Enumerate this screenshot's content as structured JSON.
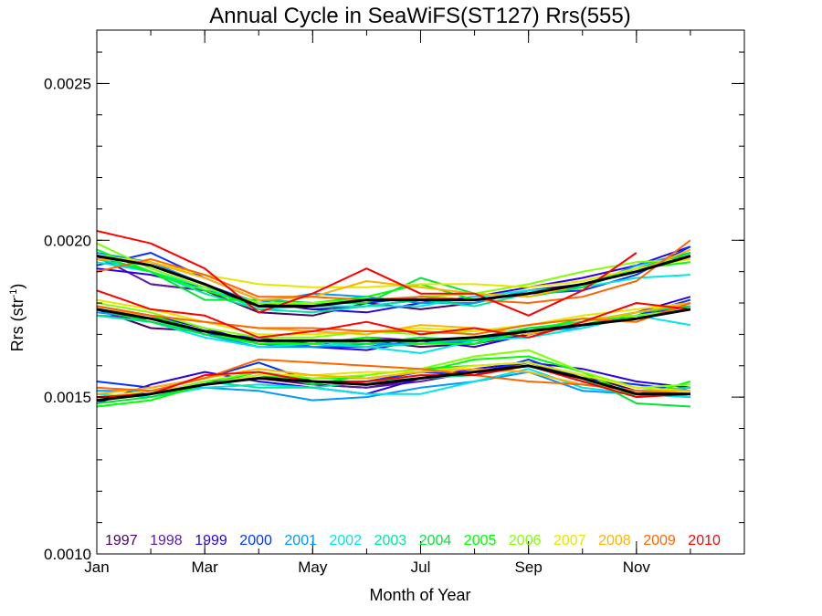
{
  "chart_data": {
    "type": "line",
    "title": "Annual Cycle in SeaWiFS(ST127) Rrs(555)",
    "xlabel": "Month of Year",
    "ylabel_main": "Rrs (str",
    "ylabel_sup": "-1",
    "ylabel_close": ")",
    "xlim": [
      1,
      13
    ],
    "ylim": [
      0.001,
      0.00267
    ],
    "x_ticks": [
      {
        "x": 1,
        "label": "Jan"
      },
      {
        "x": 3,
        "label": "Mar"
      },
      {
        "x": 5,
        "label": "May"
      },
      {
        "x": 7,
        "label": "Jul"
      },
      {
        "x": 9,
        "label": "Sep"
      },
      {
        "x": 11,
        "label": "Nov"
      }
    ],
    "y_ticks": [
      {
        "y": 0.001,
        "label": "0.0010"
      },
      {
        "y": 0.0015,
        "label": "0.0015"
      },
      {
        "y": 0.002,
        "label": "0.0020"
      },
      {
        "y": 0.0025,
        "label": "0.0025"
      }
    ],
    "y_minor_step": 0.0001,
    "months": [
      1,
      2,
      3,
      4,
      5,
      6,
      7,
      8,
      9,
      10,
      11,
      12
    ],
    "mean_series": [
      {
        "name": "upper",
        "values": [
          0.00195,
          0.00192,
          0.00186,
          0.00179,
          0.00179,
          0.00181,
          0.00181,
          0.00181,
          0.00183,
          0.00186,
          0.0019,
          0.00195
        ]
      },
      {
        "name": "middle",
        "values": [
          0.00178,
          0.00175,
          0.00171,
          0.00168,
          0.00168,
          0.00168,
          0.00168,
          0.00169,
          0.00171,
          0.00173,
          0.00175,
          0.00178
        ]
      },
      {
        "name": "lower",
        "values": [
          0.00149,
          0.00151,
          0.00154,
          0.00156,
          0.00155,
          0.00154,
          0.00156,
          0.00158,
          0.0016,
          0.00156,
          0.00151,
          0.00151
        ]
      }
    ],
    "year_series": [
      {
        "name": "1997",
        "color": "#4b0066",
        "upper": [
          null,
          0.00186,
          0.00184,
          0.00177,
          0.00176,
          0.0018,
          0.00178,
          0.0018,
          0.00184,
          0.00186,
          0.0019,
          0.00195
        ],
        "middle": [
          0.00178,
          0.00172,
          0.00171,
          0.00168,
          0.00167,
          0.00168,
          0.00166,
          0.00167,
          0.0017,
          0.00173,
          0.00175,
          0.00178
        ],
        "lower": [
          0.0015,
          0.00151,
          0.00155,
          0.00156,
          0.00154,
          0.00153,
          0.00156,
          0.00158,
          0.0016,
          0.00157,
          0.00152,
          0.00151
        ]
      },
      {
        "name": "1998",
        "color": "#5a1aa6",
        "upper": [
          0.00195,
          0.00186,
          0.00184,
          0.0018,
          0.00178,
          0.00179,
          0.00181,
          0.00181,
          0.00183,
          0.00186,
          0.00191,
          0.00196
        ],
        "middle": [
          0.00176,
          0.00175,
          0.00171,
          0.00168,
          0.00167,
          0.00169,
          0.00168,
          0.00169,
          0.00171,
          0.00173,
          0.00176,
          0.00179
        ],
        "lower": [
          0.00149,
          0.00152,
          0.00154,
          0.00157,
          0.00154,
          0.00153,
          0.00155,
          0.00158,
          0.00161,
          0.00156,
          0.00151,
          0.0015
        ]
      },
      {
        "name": "1999",
        "color": "#2a00e6",
        "upper": [
          0.00191,
          0.00189,
          0.00185,
          0.0018,
          0.00178,
          0.00177,
          0.0018,
          0.00182,
          0.00185,
          0.00188,
          0.00192,
          0.00198
        ],
        "middle": [
          0.00179,
          0.00176,
          0.00172,
          0.00167,
          0.00166,
          0.00165,
          0.00168,
          0.00166,
          0.0017,
          0.00174,
          0.00177,
          0.00182
        ],
        "lower": [
          0.00148,
          0.00154,
          0.00158,
          0.00155,
          0.00153,
          0.00151,
          0.00156,
          0.00159,
          0.00161,
          0.00159,
          0.00155,
          0.00153
        ]
      },
      {
        "name": "2000",
        "color": "#0033ff",
        "upper": [
          0.00192,
          0.00196,
          0.00188,
          0.00181,
          0.0018,
          0.0018,
          0.00182,
          0.00181,
          0.00183,
          0.00184,
          0.00189,
          0.00198
        ],
        "middle": [
          0.00179,
          0.00176,
          0.0017,
          0.00169,
          0.00166,
          0.00166,
          0.00168,
          0.00167,
          0.00172,
          0.00173,
          0.00176,
          0.00181
        ],
        "lower": [
          0.00155,
          0.00153,
          0.00156,
          0.00161,
          0.00155,
          0.00155,
          0.00158,
          0.00157,
          0.00162,
          0.00156,
          0.00154,
          0.00152
        ]
      },
      {
        "name": "2001",
        "color": "#0099ff",
        "upper": [
          0.00196,
          0.00193,
          0.00186,
          0.0018,
          0.00183,
          0.00182,
          0.0018,
          0.0018,
          0.00184,
          0.00185,
          0.00192,
          0.00196
        ],
        "middle": [
          0.00177,
          0.00175,
          0.0017,
          0.00166,
          0.00166,
          0.00167,
          0.00167,
          0.00168,
          0.00171,
          0.00172,
          0.00176,
          0.00178
        ],
        "lower": [
          0.00152,
          0.00152,
          0.00153,
          0.00152,
          0.00149,
          0.0015,
          0.00153,
          0.00155,
          0.00158,
          0.00152,
          0.00151,
          0.00153
        ]
      },
      {
        "name": "2002",
        "color": "#00e6e6",
        "upper": [
          0.00193,
          0.0019,
          0.00185,
          0.00178,
          0.00179,
          0.00179,
          0.00179,
          0.00182,
          0.00184,
          0.00185,
          0.00188,
          0.00189
        ],
        "middle": [
          0.00176,
          0.00174,
          0.00169,
          0.00166,
          0.00167,
          0.00166,
          0.00164,
          0.00168,
          0.00169,
          0.00172,
          0.00176,
          0.00173
        ],
        "lower": [
          0.00151,
          0.0015,
          0.00153,
          0.00154,
          0.00153,
          0.00151,
          0.00151,
          0.00155,
          0.00159,
          0.00153,
          0.00151,
          0.0015
        ]
      },
      {
        "name": "2003",
        "color": "#00e6a0",
        "upper": [
          0.00194,
          0.0019,
          0.00183,
          0.00178,
          0.00177,
          0.00179,
          0.00181,
          0.00179,
          0.00183,
          0.00186,
          0.0019,
          0.00196
        ],
        "middle": [
          0.00176,
          0.00174,
          0.00171,
          0.00167,
          0.00168,
          0.00166,
          0.00167,
          0.00169,
          0.00172,
          0.00174,
          0.00177,
          0.00179
        ],
        "lower": [
          0.00149,
          0.00151,
          0.00155,
          0.00153,
          0.00153,
          0.00155,
          0.00156,
          0.00157,
          0.0016,
          0.00155,
          0.00152,
          0.00153
        ]
      },
      {
        "name": "2004",
        "color": "#00e633",
        "upper": [
          0.00195,
          0.0019,
          0.00181,
          0.00181,
          0.0018,
          0.0018,
          0.00188,
          0.00183,
          0.00182,
          0.00185,
          0.00191,
          0.00196
        ],
        "middle": [
          0.00178,
          0.00174,
          0.0017,
          0.00167,
          0.00168,
          0.00167,
          0.00169,
          0.00168,
          0.00172,
          0.00173,
          0.00177,
          0.00179
        ],
        "lower": [
          0.00148,
          0.0015,
          0.00154,
          0.00158,
          0.00154,
          0.00157,
          0.00159,
          0.0016,
          0.00161,
          0.00157,
          0.00148,
          0.00147
        ]
      },
      {
        "name": "2005",
        "color": "#00ff00",
        "upper": [
          0.00197,
          0.0019,
          0.00184,
          0.00179,
          0.0018,
          0.00182,
          0.00186,
          0.00181,
          0.00183,
          0.00186,
          0.00191,
          0.00193
        ],
        "middle": [
          0.00179,
          0.00176,
          0.00171,
          0.00167,
          0.00167,
          0.00169,
          0.00167,
          0.00167,
          0.00171,
          0.00175,
          0.00175,
          0.00178
        ],
        "lower": [
          0.00147,
          0.00149,
          0.00154,
          0.00157,
          0.00156,
          0.00156,
          0.00158,
          0.00162,
          0.00163,
          0.00158,
          0.0015,
          0.00155
        ]
      },
      {
        "name": "2006",
        "color": "#80ff00",
        "upper": [
          0.00199,
          0.00191,
          0.00185,
          0.0018,
          0.0018,
          0.00181,
          0.00182,
          0.00183,
          0.00186,
          0.0019,
          0.00193,
          0.00194
        ],
        "middle": [
          0.0018,
          0.00177,
          0.00172,
          0.00169,
          0.00169,
          0.00171,
          0.0017,
          0.00171,
          0.00173,
          0.00175,
          0.00176,
          0.00178
        ],
        "lower": [
          0.00149,
          0.00151,
          0.00155,
          0.00158,
          0.00156,
          0.00157,
          0.00159,
          0.00163,
          0.00165,
          0.00158,
          0.00153,
          0.00154
        ]
      },
      {
        "name": "2007",
        "color": "#e6e600",
        "upper": [
          0.00195,
          0.00193,
          0.00189,
          0.00186,
          0.00185,
          0.00185,
          0.00186,
          0.00186,
          0.00185,
          0.00187,
          0.00191,
          0.00194
        ],
        "middle": [
          0.00181,
          0.00178,
          0.00174,
          0.0017,
          0.0017,
          0.00171,
          0.00172,
          0.00171,
          0.00173,
          0.00176,
          0.00178,
          0.0018
        ],
        "lower": [
          0.0015,
          0.00152,
          0.00154,
          0.00157,
          0.00157,
          0.00158,
          0.00158,
          0.0016,
          0.00161,
          0.00157,
          0.00153,
          0.00152
        ]
      },
      {
        "name": "2008",
        "color": "#ffb300",
        "upper": [
          0.00194,
          0.00193,
          0.00188,
          0.00181,
          0.00182,
          0.00187,
          0.00185,
          0.00183,
          0.00182,
          0.00186,
          0.0019,
          0.00197
        ],
        "middle": [
          0.00178,
          0.00176,
          0.00174,
          0.00172,
          0.00171,
          0.0017,
          0.00173,
          0.00172,
          0.0017,
          0.00174,
          0.00177,
          0.0018
        ],
        "lower": [
          0.00151,
          0.00153,
          0.00156,
          0.00159,
          0.00157,
          0.00156,
          0.00158,
          0.00159,
          0.00158,
          0.00154,
          0.00152,
          0.00152
        ]
      },
      {
        "name": "2009",
        "color": "#ff6600",
        "upper": [
          0.0019,
          0.00194,
          0.00189,
          0.00182,
          0.00182,
          0.00181,
          0.00182,
          0.00181,
          0.0018,
          0.00182,
          0.00187,
          0.002
        ],
        "middle": [
          0.00179,
          0.00176,
          0.00174,
          0.00172,
          0.00172,
          0.00171,
          0.00171,
          0.0017,
          0.00173,
          0.00175,
          0.00174,
          0.0018
        ],
        "lower": [
          0.00153,
          0.00152,
          0.00156,
          0.00162,
          0.00161,
          0.0016,
          0.00159,
          0.00157,
          0.00155,
          0.00154,
          0.00152,
          0.00151
        ]
      },
      {
        "name": "2010",
        "color": "#ff0000",
        "upper": [
          0.00203,
          0.00199,
          0.00191,
          0.00177,
          0.00183,
          0.00191,
          0.00183,
          0.00183,
          0.00176,
          0.00184,
          0.00196,
          null
        ],
        "middle": [
          0.00184,
          0.00178,
          0.00176,
          0.00169,
          0.00171,
          0.00174,
          0.0017,
          0.00172,
          0.00169,
          0.00174,
          0.0018,
          0.00178
        ],
        "lower": [
          0.0015,
          0.00151,
          0.00157,
          0.00158,
          0.00155,
          0.00155,
          0.00157,
          0.00157,
          0.0016,
          0.00155,
          0.0015,
          0.00151
        ]
      }
    ]
  }
}
